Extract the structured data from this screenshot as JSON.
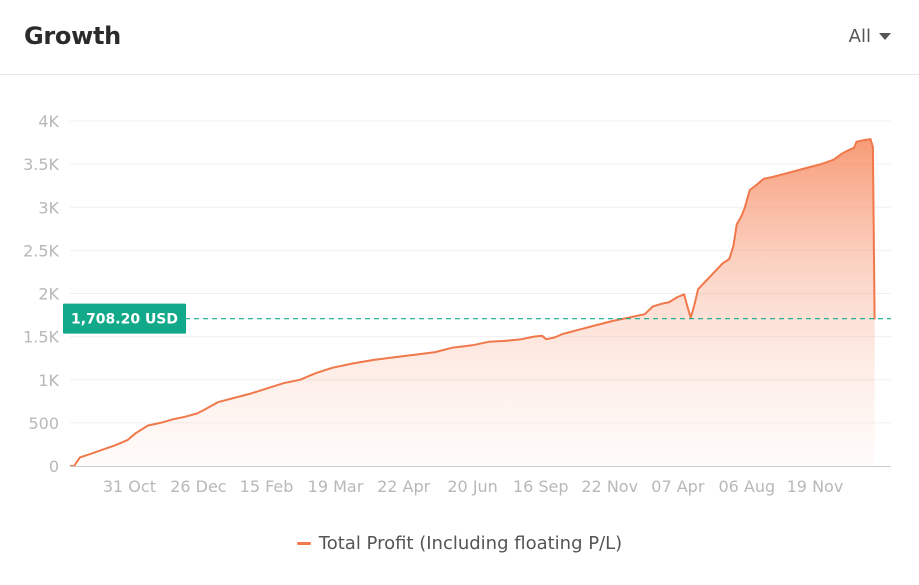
{
  "header": {
    "title": "Growth",
    "filter_label": "All"
  },
  "colors": {
    "series": "#f0784a",
    "annotation": "#12a98b",
    "grid": "#f0f0f0",
    "axis": "#cccccc"
  },
  "chart_data": {
    "type": "area",
    "title": "Growth",
    "xlabel": "",
    "ylabel": "",
    "ylim": [
      0,
      4000
    ],
    "y_ticks": [
      0,
      500,
      1000,
      1500,
      2000,
      2500,
      3000,
      3500,
      4000
    ],
    "y_tick_labels": [
      "0",
      "500",
      "1K",
      "1.5K",
      "2K",
      "2.5K",
      "3K",
      "3.5K",
      "4K"
    ],
    "x_range": [
      0,
      1000
    ],
    "x_ticks": [
      {
        "x": 87,
        "label": "31 Oct"
      },
      {
        "x": 171,
        "label": "26 Dec"
      },
      {
        "x": 254,
        "label": "15 Feb"
      },
      {
        "x": 338,
        "label": "19 Mar"
      },
      {
        "x": 421,
        "label": "22 Apr"
      },
      {
        "x": 505,
        "label": "20 Jun"
      },
      {
        "x": 588,
        "label": "16 Sep"
      },
      {
        "x": 672,
        "label": "22 Nov"
      },
      {
        "x": 755,
        "label": "07 Apr"
      },
      {
        "x": 839,
        "label": "06 Aug"
      },
      {
        "x": 922,
        "label": "19 Nov"
      }
    ],
    "grid": true,
    "legend_position": "bottom",
    "series": [
      {
        "name": "Total Profit (Including floating P/L)",
        "points": [
          [
            0,
            0
          ],
          [
            5,
            0
          ],
          [
            12,
            100
          ],
          [
            25,
            140
          ],
          [
            40,
            190
          ],
          [
            55,
            240
          ],
          [
            70,
            300
          ],
          [
            80,
            380
          ],
          [
            95,
            470
          ],
          [
            110,
            500
          ],
          [
            125,
            540
          ],
          [
            140,
            570
          ],
          [
            155,
            610
          ],
          [
            165,
            660
          ],
          [
            180,
            740
          ],
          [
            200,
            790
          ],
          [
            220,
            840
          ],
          [
            240,
            900
          ],
          [
            260,
            960
          ],
          [
            280,
            1000
          ],
          [
            300,
            1080
          ],
          [
            320,
            1140
          ],
          [
            345,
            1190
          ],
          [
            370,
            1230
          ],
          [
            395,
            1260
          ],
          [
            420,
            1290
          ],
          [
            445,
            1320
          ],
          [
            465,
            1370
          ],
          [
            490,
            1400
          ],
          [
            510,
            1440
          ],
          [
            530,
            1450
          ],
          [
            550,
            1470
          ],
          [
            565,
            1500
          ],
          [
            575,
            1510
          ],
          [
            580,
            1470
          ],
          [
            590,
            1490
          ],
          [
            600,
            1530
          ],
          [
            620,
            1580
          ],
          [
            640,
            1630
          ],
          [
            660,
            1680
          ],
          [
            680,
            1720
          ],
          [
            700,
            1760
          ],
          [
            710,
            1850
          ],
          [
            720,
            1880
          ],
          [
            730,
            1900
          ],
          [
            740,
            1960
          ],
          [
            748,
            1990
          ],
          [
            752,
            1850
          ],
          [
            756,
            1720
          ],
          [
            760,
            1850
          ],
          [
            765,
            2050
          ],
          [
            775,
            2150
          ],
          [
            785,
            2250
          ],
          [
            795,
            2350
          ],
          [
            803,
            2400
          ],
          [
            808,
            2550
          ],
          [
            812,
            2800
          ],
          [
            818,
            2900
          ],
          [
            822,
            3000
          ],
          [
            828,
            3200
          ],
          [
            835,
            3250
          ],
          [
            845,
            3330
          ],
          [
            855,
            3350
          ],
          [
            875,
            3400
          ],
          [
            895,
            3450
          ],
          [
            915,
            3500
          ],
          [
            930,
            3550
          ],
          [
            940,
            3620
          ],
          [
            948,
            3660
          ],
          [
            955,
            3690
          ],
          [
            958,
            3760
          ],
          [
            968,
            3780
          ],
          [
            975,
            3790
          ],
          [
            978,
            3700
          ],
          [
            980,
            1700
          ]
        ]
      }
    ],
    "annotation": {
      "y": 1708.2,
      "label": "1,708.20 USD"
    }
  }
}
